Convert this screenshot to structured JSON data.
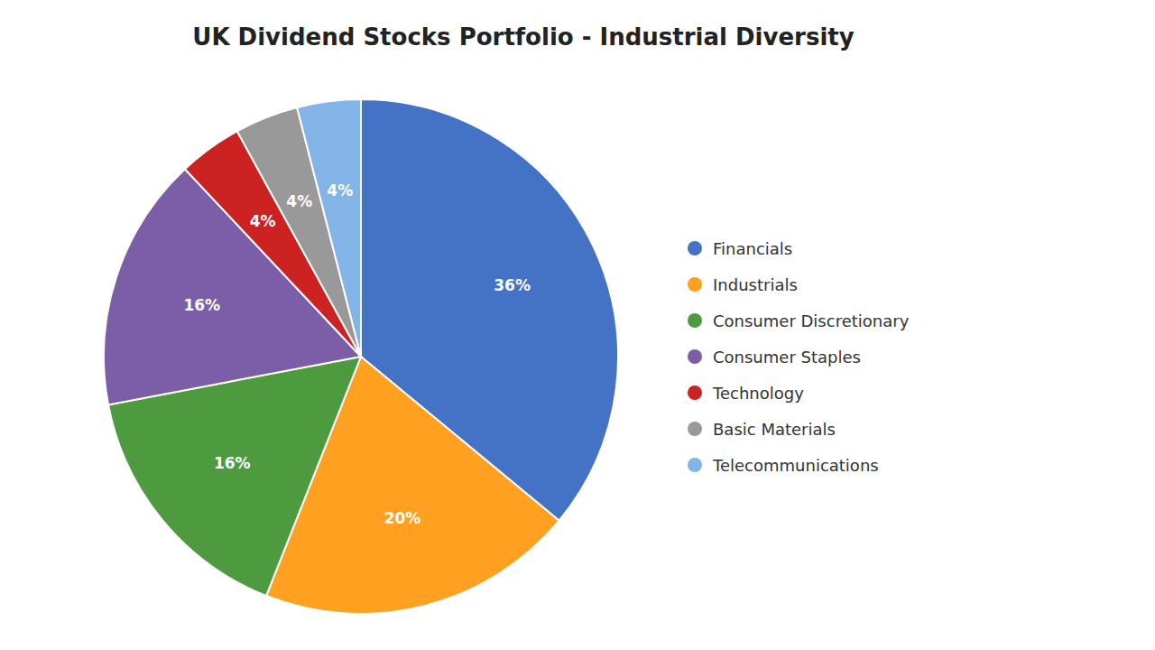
{
  "chart_data": {
    "type": "pie",
    "title": "UK Dividend Stocks Portfolio - Industrial Diversity",
    "categories": [
      "Financials",
      "Industrials",
      "Consumer Discretionary",
      "Consumer Staples",
      "Technology",
      "Basic Materials",
      "Telecommunications"
    ],
    "values": [
      36,
      20,
      16,
      16,
      4,
      4,
      4
    ],
    "value_labels": [
      "36%",
      "20%",
      "16%",
      "16%",
      "4%",
      "4%",
      "4%"
    ],
    "colors": [
      "#4472C4",
      "#FFA020",
      "#4E9A3F",
      "#7B5EA7",
      "#CC2222",
      "#999999",
      "#82B4E8"
    ],
    "data_labels": true,
    "legend": "right"
  }
}
